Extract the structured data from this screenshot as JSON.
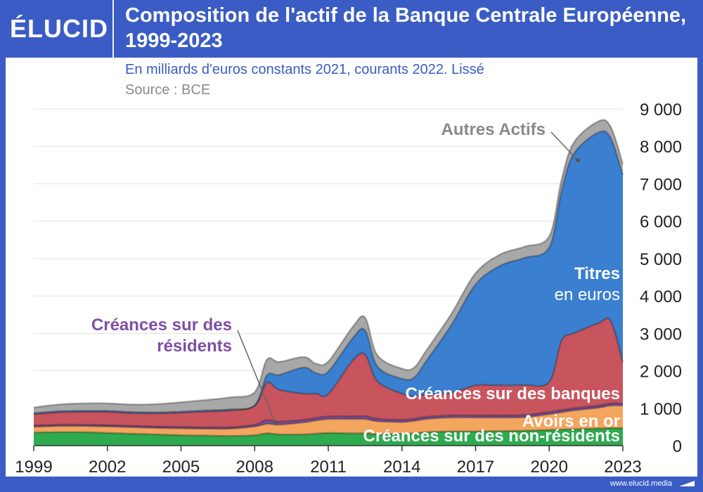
{
  "brand": {
    "logo_text": "ÉLUCID",
    "url": "www.elucid.media"
  },
  "header": {
    "title": "Composition de l'actif de la Banque Centrale Européenne, 1999-2023",
    "subtitle": "En milliards d'euros constants 2021, courants 2022. Lissé",
    "source": "Source : BCE"
  },
  "colors": {
    "background": "#3a5cc4",
    "green": "#2eaa4f",
    "orange": "#f4a55e",
    "purple": "#7e4fa4",
    "red": "#c8545e",
    "blue": "#3a7fd0",
    "grey": "#a8a8a8"
  },
  "chart_data": {
    "type": "area",
    "stacked": true,
    "x": [
      1999,
      2000,
      2001,
      2002,
      2003,
      2004,
      2005,
      2006,
      2007,
      2008,
      2008.5,
      2009,
      2010,
      2010.5,
      2011,
      2012,
      2012.5,
      2013,
      2014,
      2014.5,
      2015,
      2016,
      2017,
      2018,
      2019,
      2020,
      2020.5,
      2021,
      2022,
      2022.5,
      2023
    ],
    "xticks": [
      "1999",
      "2002",
      "2005",
      "2008",
      "2011",
      "2014",
      "2017",
      "2020",
      "2023"
    ],
    "xlim": [
      1999,
      2023
    ],
    "yticks": [
      "0",
      "1 000",
      "2 000",
      "3 000",
      "4 000",
      "5 000",
      "6 000",
      "7 000",
      "8 000",
      "9 000"
    ],
    "ylim": [
      0,
      9000
    ],
    "grid": true,
    "series": [
      {
        "name": "Créances sur des non-résidents",
        "color": "#2eaa4f",
        "values": [
          350,
          360,
          360,
          340,
          320,
          300,
          280,
          270,
          260,
          280,
          330,
          300,
          300,
          320,
          340,
          330,
          330,
          310,
          320,
          330,
          360,
          380,
          380,
          390,
          400,
          420,
          430,
          440,
          460,
          470,
          470
        ]
      },
      {
        "name": "Avoirs en or",
        "color": "#f4a55e",
        "values": [
          150,
          160,
          160,
          170,
          170,
          170,
          180,
          180,
          190,
          230,
          250,
          260,
          320,
          350,
          370,
          380,
          380,
          340,
          310,
          330,
          350,
          370,
          370,
          360,
          360,
          420,
          460,
          500,
          550,
          600,
          600
        ]
      },
      {
        "name": "Créances sur des résidents",
        "color": "#7e4fa4",
        "values": [
          40,
          40,
          40,
          40,
          40,
          40,
          40,
          40,
          40,
          50,
          100,
          80,
          70,
          70,
          70,
          70,
          80,
          70,
          60,
          60,
          60,
          60,
          60,
          60,
          60,
          60,
          60,
          60,
          60,
          60,
          60
        ]
      },
      {
        "name": "Créances sur des banques",
        "color": "#c8545e",
        "values": [
          300,
          330,
          340,
          350,
          340,
          350,
          380,
          420,
          450,
          500,
          1000,
          850,
          700,
          650,
          600,
          1500,
          1640,
          1000,
          700,
          600,
          600,
          600,
          800,
          800,
          800,
          800,
          1850,
          2000,
          2200,
          2200,
          1100
        ]
      },
      {
        "name": "Titres en euros",
        "color": "#3a7fd0",
        "values": [
          30,
          30,
          30,
          30,
          30,
          30,
          30,
          30,
          30,
          20,
          200,
          400,
          700,
          550,
          600,
          600,
          650,
          400,
          400,
          500,
          900,
          1800,
          2700,
          3200,
          3400,
          3600,
          4000,
          4800,
          5100,
          4900,
          5000
        ]
      },
      {
        "name": "Autres Actifs",
        "color": "#a8a8a8",
        "values": [
          150,
          180,
          200,
          200,
          200,
          220,
          250,
          280,
          320,
          350,
          420,
          350,
          280,
          250,
          270,
          300,
          340,
          300,
          270,
          270,
          280,
          300,
          300,
          300,
          300,
          300,
          300,
          300,
          300,
          300,
          300
        ]
      }
    ],
    "labels": {
      "titres_line1": "Titres",
      "titres_line2": "en euros",
      "autres": "Autres Actifs",
      "banques": "Créances sur des banques",
      "or": "Avoirs en or",
      "non_residents": "Créances sur des non-résidents",
      "residents_line1": "Créances sur des",
      "residents_line2": "résidents"
    }
  }
}
